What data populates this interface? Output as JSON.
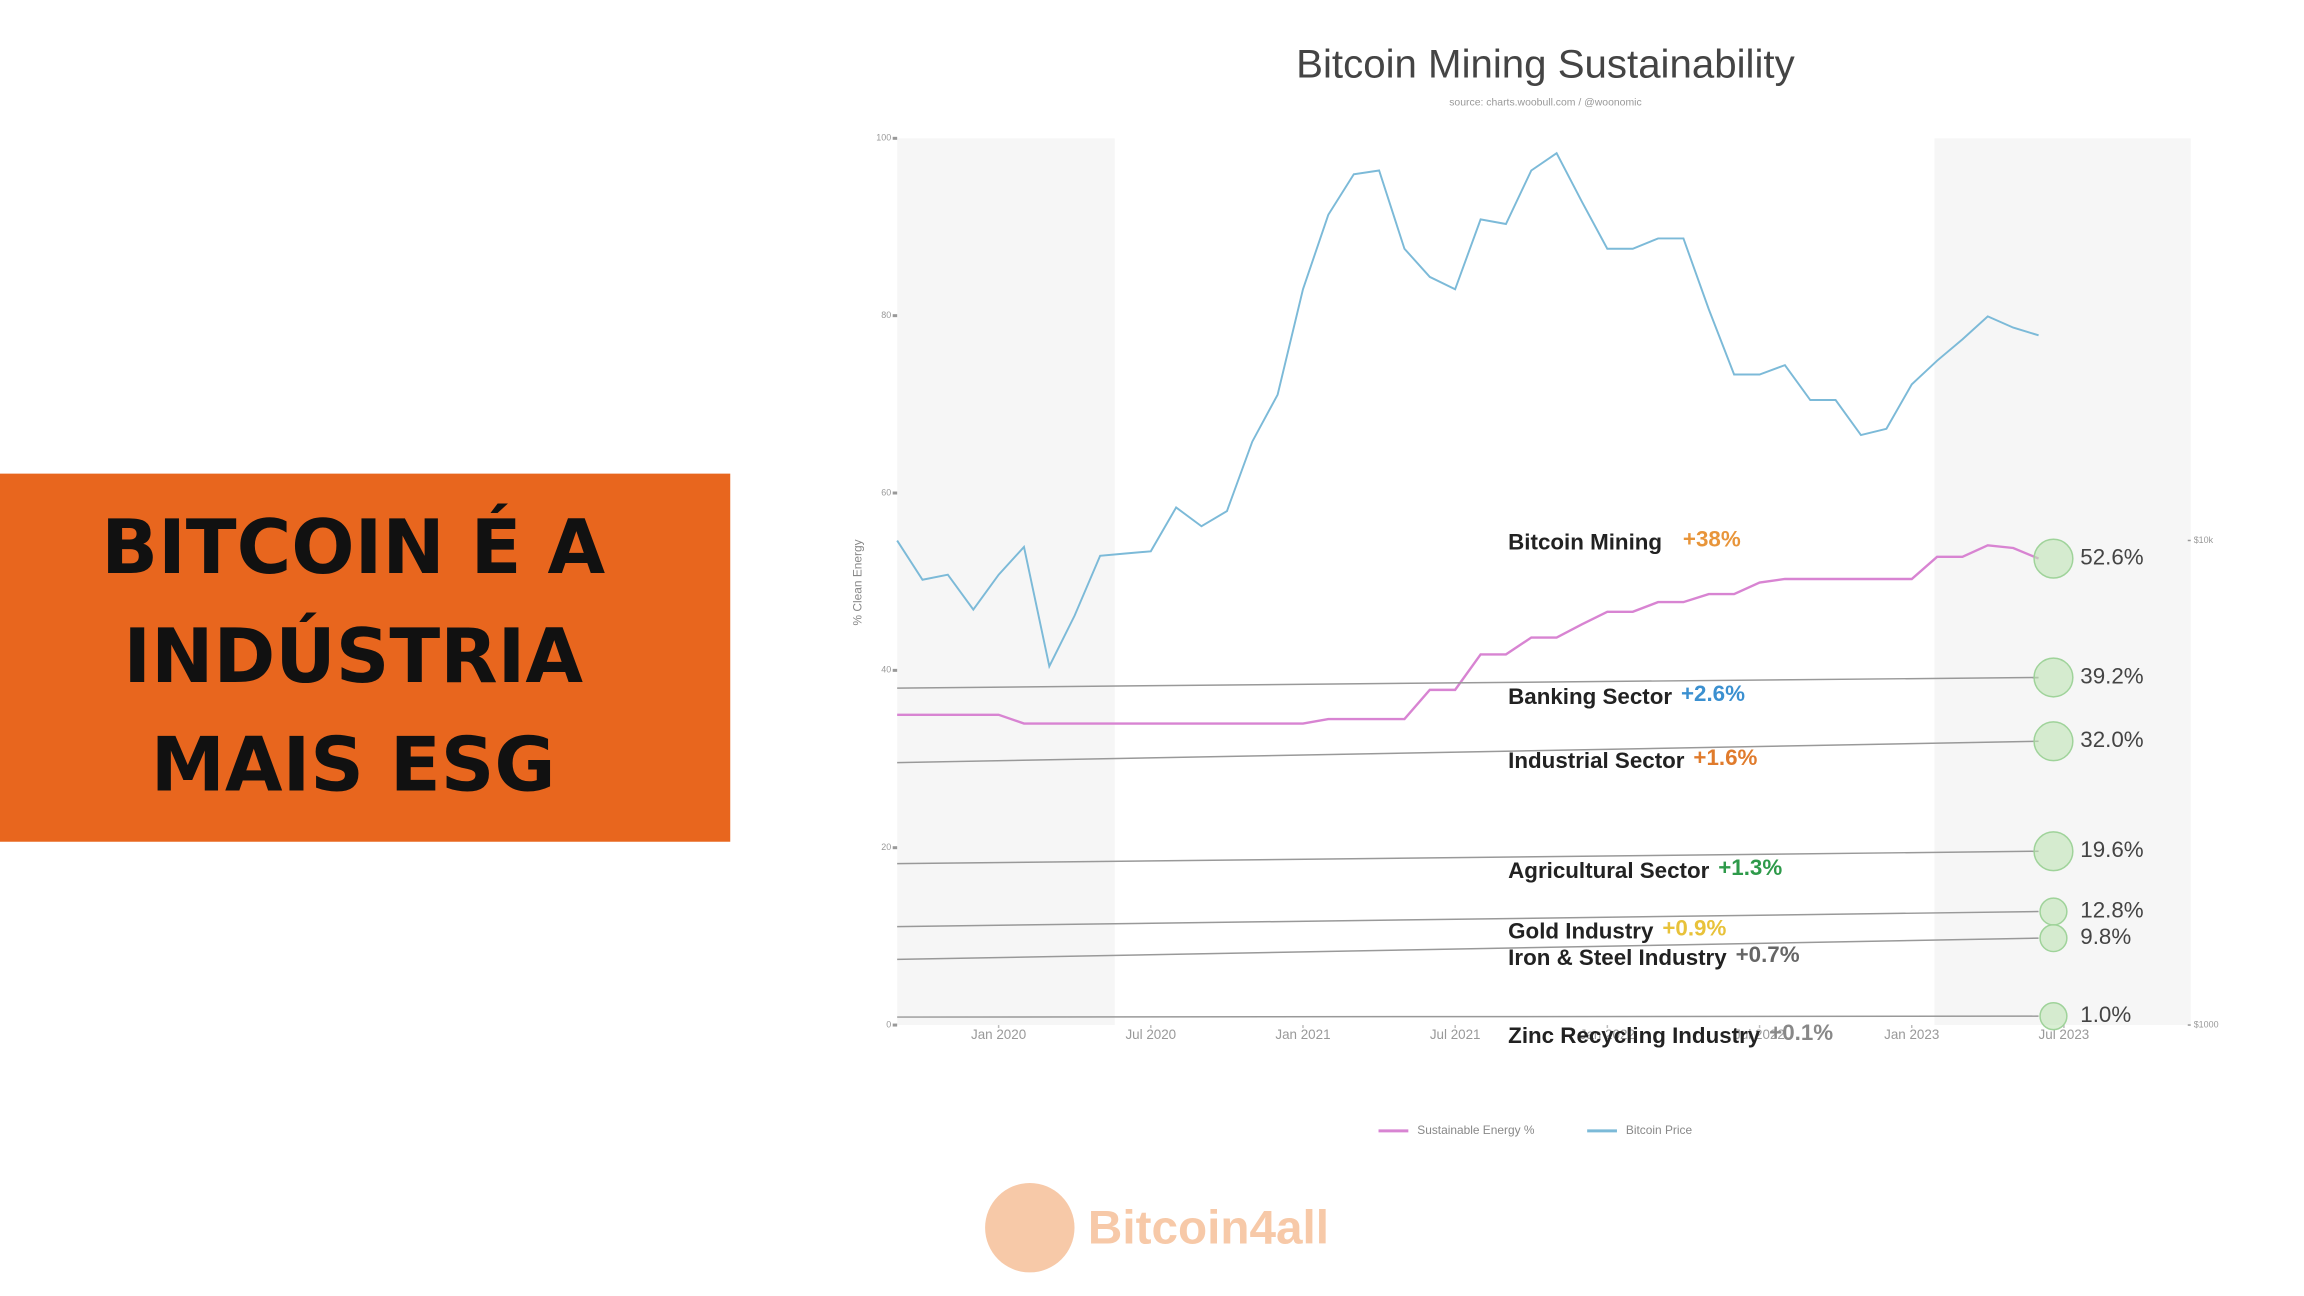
{
  "banner": {
    "lines": [
      "BITCOIN É A",
      "INDÚSTRIA",
      "MAIS ESG"
    ]
  },
  "logo": {
    "text": "Bitcoin4all"
  },
  "chart_data": {
    "type": "line",
    "title": "Bitcoin Mining Sustainability",
    "subtitle": "source: charts.woobull.com / @woonomic",
    "y_label": "% Clean Energy",
    "x": [
      "2019-09",
      "2019-10",
      "2019-11",
      "2019-12",
      "2020-01",
      "2020-02",
      "2020-03",
      "2020-04",
      "2020-05",
      "2020-06",
      "2020-07",
      "2020-08",
      "2020-09",
      "2020-10",
      "2020-11",
      "2020-12",
      "2021-01",
      "2021-02",
      "2021-03",
      "2021-04",
      "2021-05",
      "2021-06",
      "2021-07",
      "2021-08",
      "2021-09",
      "2021-10",
      "2021-11",
      "2021-12",
      "2022-01",
      "2022-02",
      "2022-03",
      "2022-04",
      "2022-05",
      "2022-06",
      "2022-07",
      "2022-08",
      "2022-09",
      "2022-10",
      "2022-11",
      "2022-12",
      "2023-01",
      "2023-02",
      "2023-03",
      "2023-04",
      "2023-05",
      "2023-06"
    ],
    "xlim": [
      "2019-09",
      "2023-12"
    ],
    "xticks": [
      {
        "value": "2020-01",
        "label": "Jan 2020"
      },
      {
        "value": "2020-07",
        "label": "Jul 2020"
      },
      {
        "value": "2021-01",
        "label": "Jan 2021"
      },
      {
        "value": "2021-07",
        "label": "Jul 2021"
      },
      {
        "value": "2022-01",
        "label": "Jan 2022"
      },
      {
        "value": "2022-07",
        "label": "Jul 2022"
      },
      {
        "value": "2023-01",
        "label": "Jan 2023"
      },
      {
        "value": "2023-07",
        "label": "Jul 2023"
      }
    ],
    "ylim": [
      0,
      100
    ],
    "yticks": [
      0,
      20,
      40,
      60,
      80,
      100
    ],
    "y2lim": [
      1000,
      67600
    ],
    "y2log": true,
    "y2ticks": [
      {
        "value": 1000,
        "label": "$1000"
      },
      {
        "value": 10000,
        "label": "$10k"
      }
    ],
    "series": [
      {
        "name": "Sustainable Energy %",
        "color": "#d884d2",
        "values": [
          35,
          35,
          35,
          35,
          35,
          34,
          34,
          34,
          34,
          34,
          34,
          34,
          34,
          34,
          34,
          34,
          34,
          34.5,
          34.5,
          34.5,
          34.5,
          37.8,
          37.8,
          41.8,
          41.8,
          43.7,
          43.7,
          45.2,
          46.6,
          46.6,
          47.7,
          47.7,
          48.6,
          48.6,
          49.9,
          50.3,
          50.3,
          50.3,
          50.3,
          50.3,
          50.3,
          52.8,
          52.8,
          54.1,
          53.8,
          52.6
        ]
      },
      {
        "name": "Bitcoin Price",
        "color": "#7cbad8",
        "axis": "y2",
        "values": [
          10000,
          8300,
          8500,
          7200,
          8500,
          9700,
          5500,
          7000,
          9300,
          9400,
          9500,
          11700,
          10700,
          11500,
          16000,
          20000,
          33000,
          47000,
          57000,
          58000,
          40000,
          35000,
          33000,
          46000,
          45000,
          58000,
          63000,
          50000,
          40000,
          40000,
          42000,
          42000,
          30000,
          22000,
          22000,
          23000,
          19500,
          19500,
          16500,
          17000,
          21000,
          23500,
          26000,
          29000,
          27500,
          26500
        ]
      }
    ],
    "sectors": [
      {
        "name": "Bitcoin Mining",
        "change": "+38%",
        "change_color": "#e8953a",
        "value": 52.6,
        "value_label": "52.6%"
      },
      {
        "name": "Banking Sector",
        "change": "+2.6%",
        "change_color": "#3b90d0",
        "start": 38.0,
        "value": 39.2,
        "value_label": "39.2%"
      },
      {
        "name": "Industrial Sector",
        "change": "+1.6%",
        "change_color": "#e07b2c",
        "start": 29.6,
        "value": 32.0,
        "value_label": "32.0%"
      },
      {
        "name": "Agricultural Sector",
        "change": "+1.3%",
        "change_color": "#2e9a4a",
        "start": 18.2,
        "value": 19.6,
        "value_label": "19.6%"
      },
      {
        "name": "Gold Industry",
        "change": "+0.9%",
        "change_color": "#e8c23a",
        "start": 11.1,
        "value": 12.8,
        "value_label": "12.8%"
      },
      {
        "name": "Iron & Steel Industry",
        "change": "+0.7%",
        "change_color": "#666666",
        "start": 7.4,
        "value": 9.8,
        "value_label": "9.8%"
      },
      {
        "name": "Zinc Recycling Industry",
        "change": "+0.1%",
        "change_color": "#888888",
        "start": 0.9,
        "value": 1.0,
        "value_label": "1.0%"
      }
    ],
    "grid": false
  }
}
